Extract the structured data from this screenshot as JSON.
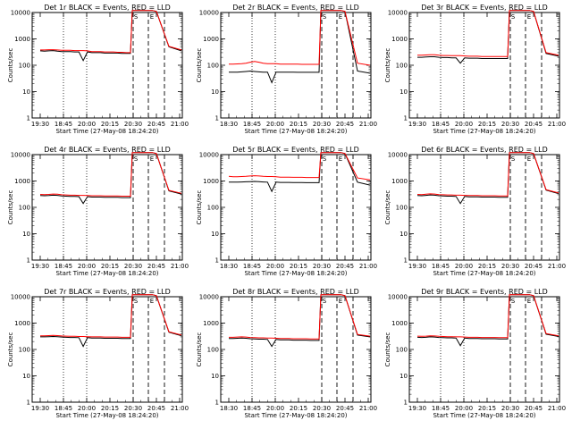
{
  "chart_data": [
    {
      "type": "line",
      "title": "Det 1r BLACK = Events, RED = LLD",
      "xlabel": "Start Time (27-May-08 18:24:20)",
      "ylabel": "Counts/sec",
      "x_tick_labels": [
        "19:30",
        "18:45",
        "20:00",
        "20:15",
        "20:30",
        "20:45",
        "21:00"
      ],
      "y_tick_labels": [
        "10000",
        "1000",
        "100",
        "10",
        "1"
      ],
      "yscale": "log",
      "ylim": [
        1,
        10000
      ],
      "markers": [
        "S",
        "E"
      ],
      "series": [
        {
          "color": "#000000",
          "values": [
            350,
            340,
            350,
            360,
            340,
            330,
            330,
            330,
            320,
            320,
            150,
            320,
            300,
            300,
            300,
            290,
            290,
            290,
            290,
            280,
            280,
            280,
            12000,
            12000,
            12000,
            12000,
            12000,
            12000,
            11000,
            500,
            350
          ]
        },
        {
          "color": "#ff0000",
          "values": [
            380,
            380,
            390,
            390,
            380,
            370,
            370,
            370,
            360,
            360,
            360,
            350,
            330,
            330,
            330,
            320,
            320,
            320,
            310,
            310,
            300,
            300,
            12000,
            12000,
            12000,
            12000,
            12000,
            12000,
            11000,
            520,
            380
          ]
        }
      ]
    },
    {
      "type": "line",
      "title": "Det 2r BLACK = Events, RED = LLD",
      "xlabel": "Start Time (27-May-08 18:24:20)",
      "ylabel": "Counts/sec",
      "x_tick_labels": [
        "18:30",
        "18:45",
        "20:00",
        "20:15",
        "20:30",
        "20:45",
        "21:00"
      ],
      "y_tick_labels": [
        "10000",
        "1000",
        "100",
        "10",
        "1"
      ],
      "yscale": "log",
      "ylim": [
        1,
        10000
      ],
      "markers": [
        "S",
        "E"
      ],
      "series": [
        {
          "color": "#000000",
          "values": [
            55,
            55,
            55,
            56,
            58,
            60,
            58,
            56,
            55,
            55,
            22,
            55,
            55,
            55,
            55,
            55,
            54,
            54,
            54,
            54,
            54,
            54,
            12000,
            12000,
            12000,
            12000,
            12000,
            12000,
            11000,
            60,
            50
          ]
        },
        {
          "color": "#ff0000",
          "values": [
            110,
            110,
            112,
            115,
            120,
            130,
            140,
            130,
            120,
            115,
            115,
            115,
            110,
            110,
            110,
            110,
            110,
            108,
            108,
            108,
            108,
            108,
            12000,
            12000,
            12000,
            12000,
            12000,
            12000,
            11000,
            120,
            100
          ]
        }
      ]
    },
    {
      "type": "line",
      "title": "Det 3r BLACK = Events, RED = LLD",
      "xlabel": "Start Time (27-May-08 18:24:20)",
      "ylabel": "Counts/sec",
      "x_tick_labels": [
        "19:30",
        "18:45",
        "20:00",
        "20:15",
        "20:30",
        "20:45",
        "21:00"
      ],
      "y_tick_labels": [
        "10000",
        "1000",
        "100",
        "10",
        "1"
      ],
      "yscale": "log",
      "ylim": [
        1,
        10000
      ],
      "markers": [
        "S",
        "E"
      ],
      "series": [
        {
          "color": "#000000",
          "values": [
            200,
            200,
            205,
            210,
            210,
            200,
            195,
            195,
            190,
            190,
            120,
            190,
            185,
            185,
            185,
            180,
            180,
            180,
            180,
            180,
            180,
            180,
            12000,
            12000,
            12000,
            12000,
            12000,
            12000,
            11000,
            280,
            220
          ]
        },
        {
          "color": "#ff0000",
          "values": [
            240,
            240,
            245,
            250,
            250,
            240,
            235,
            235,
            230,
            230,
            230,
            225,
            220,
            220,
            220,
            215,
            215,
            215,
            215,
            215,
            215,
            215,
            12000,
            12000,
            12000,
            12000,
            12000,
            12000,
            11000,
            300,
            240
          ]
        }
      ]
    },
    {
      "type": "line",
      "title": "Det 4r BLACK = Events, RED = LLD",
      "xlabel": "Start Time (27-May-08 18:24:20)",
      "ylabel": "Counts/sec",
      "x_tick_labels": [
        "19:30",
        "18:45",
        "20:00",
        "20:15",
        "20:30",
        "20:45",
        "21:00"
      ],
      "y_tick_labels": [
        "10000",
        "1000",
        "100",
        "10",
        "1"
      ],
      "yscale": "log",
      "ylim": [
        1,
        10000
      ],
      "markers": [
        "S",
        "E"
      ],
      "series": [
        {
          "color": "#000000",
          "values": [
            280,
            275,
            280,
            290,
            285,
            270,
            265,
            260,
            260,
            255,
            140,
            255,
            245,
            245,
            245,
            240,
            240,
            240,
            240,
            235,
            235,
            235,
            12000,
            12000,
            12000,
            12000,
            12000,
            12000,
            11000,
            420,
            320
          ]
        },
        {
          "color": "#ff0000",
          "values": [
            310,
            305,
            310,
            320,
            315,
            300,
            295,
            290,
            290,
            285,
            285,
            280,
            275,
            275,
            275,
            270,
            270,
            270,
            270,
            265,
            265,
            265,
            12000,
            12000,
            12000,
            12000,
            12000,
            12000,
            11000,
            440,
            340
          ]
        }
      ]
    },
    {
      "type": "line",
      "title": "Det 5r BLACK = Events, RED = LLD",
      "xlabel": "Start Time (27-May-08 18:24:20)",
      "ylabel": "Counts/sec",
      "x_tick_labels": [
        "18:30",
        "18:45",
        "20:00",
        "20:15",
        "20:30",
        "20:45",
        "21:00"
      ],
      "y_tick_labels": [
        "10000",
        "1000",
        "100",
        "10",
        "1"
      ],
      "yscale": "log",
      "ylim": [
        1,
        10000
      ],
      "markers": [
        "S",
        "E"
      ],
      "series": [
        {
          "color": "#000000",
          "values": [
            900,
            900,
            910,
            920,
            930,
            950,
            960,
            940,
            920,
            900,
            400,
            900,
            880,
            880,
            880,
            870,
            870,
            870,
            860,
            860,
            860,
            860,
            12000,
            12000,
            12000,
            12000,
            12000,
            12000,
            11000,
            900,
            700
          ]
        },
        {
          "color": "#ff0000",
          "values": [
            1500,
            1450,
            1450,
            1480,
            1500,
            1550,
            1580,
            1550,
            1500,
            1480,
            1480,
            1450,
            1400,
            1400,
            1400,
            1380,
            1380,
            1380,
            1360,
            1360,
            1360,
            1360,
            12000,
            12000,
            12000,
            12000,
            12000,
            12000,
            11000,
            1300,
            1100
          ]
        }
      ]
    },
    {
      "type": "line",
      "title": "Det 6r BLACK = Events, RED = LLD",
      "xlabel": "Start Time (27-May-08 18:24:20)",
      "ylabel": "Counts/sec",
      "x_tick_labels": [
        "19:30",
        "18:45",
        "20:00",
        "20:15",
        "20:30",
        "20:45",
        "21:00"
      ],
      "y_tick_labels": [
        "10000",
        "1000",
        "100",
        "10",
        "1"
      ],
      "yscale": "log",
      "ylim": [
        1,
        10000
      ],
      "markers": [
        "S",
        "E"
      ],
      "series": [
        {
          "color": "#000000",
          "values": [
            280,
            275,
            285,
            295,
            290,
            275,
            270,
            265,
            265,
            260,
            140,
            260,
            250,
            250,
            250,
            245,
            245,
            245,
            245,
            240,
            240,
            240,
            12000,
            12000,
            12000,
            12000,
            12000,
            12000,
            11000,
            450,
            330
          ]
        },
        {
          "color": "#ff0000",
          "values": [
            310,
            305,
            315,
            325,
            320,
            305,
            300,
            295,
            295,
            290,
            290,
            285,
            280,
            280,
            280,
            275,
            275,
            275,
            275,
            270,
            270,
            270,
            12000,
            12000,
            12000,
            12000,
            12000,
            12000,
            11000,
            470,
            350
          ]
        }
      ]
    },
    {
      "type": "line",
      "title": "Det 7r BLACK = Events, RED = LLD",
      "xlabel": "Start Time (27-May-08 18:24:20)",
      "ylabel": "Counts/sec",
      "x_tick_labels": [
        "19:30",
        "18:45",
        "20:00",
        "20:15",
        "20:30",
        "20:45",
        "21:00"
      ],
      "y_tick_labels": [
        "10000",
        "1000",
        "100",
        "10",
        "1"
      ],
      "yscale": "log",
      "ylim": [
        1,
        10000
      ],
      "markers": [
        "S",
        "E"
      ],
      "series": [
        {
          "color": "#000000",
          "values": [
            300,
            300,
            305,
            310,
            305,
            295,
            290,
            285,
            285,
            280,
            130,
            280,
            270,
            270,
            270,
            265,
            265,
            265,
            265,
            260,
            260,
            260,
            12000,
            12000,
            12000,
            12000,
            12000,
            12000,
            11000,
            450,
            330
          ]
        },
        {
          "color": "#ff0000",
          "values": [
            330,
            330,
            335,
            340,
            335,
            325,
            320,
            315,
            315,
            310,
            310,
            305,
            300,
            300,
            300,
            295,
            295,
            295,
            295,
            290,
            290,
            290,
            12000,
            12000,
            12000,
            12000,
            12000,
            12000,
            11000,
            470,
            350
          ]
        }
      ]
    },
    {
      "type": "line",
      "title": "Det 8r BLACK = Events, RED = LLD",
      "xlabel": "Start Time (27-May-08 18:24:20)",
      "ylabel": "Counts/sec",
      "x_tick_labels": [
        "18:30",
        "18:45",
        "20:00",
        "20:15",
        "20:30",
        "20:45",
        "21:00"
      ],
      "y_tick_labels": [
        "10000",
        "1000",
        "100",
        "10",
        "1"
      ],
      "yscale": "log",
      "ylim": [
        1,
        10000
      ],
      "markers": [
        "S",
        "E"
      ],
      "series": [
        {
          "color": "#000000",
          "values": [
            260,
            260,
            265,
            270,
            265,
            255,
            250,
            245,
            245,
            240,
            130,
            240,
            230,
            230,
            230,
            225,
            225,
            225,
            225,
            220,
            220,
            220,
            12000,
            12000,
            12000,
            12000,
            12000,
            12000,
            11000,
            350,
            300
          ]
        },
        {
          "color": "#ff0000",
          "values": [
            290,
            290,
            295,
            300,
            295,
            285,
            280,
            275,
            275,
            270,
            270,
            265,
            260,
            260,
            260,
            255,
            255,
            255,
            255,
            250,
            250,
            250,
            12000,
            12000,
            12000,
            12000,
            12000,
            12000,
            11000,
            370,
            320
          ]
        }
      ]
    },
    {
      "type": "line",
      "title": "Det 9r BLACK = Events, RED = LLD",
      "xlabel": "Start Time (27-May-08 18:24:20)",
      "ylabel": "Counts/sec",
      "x_tick_labels": [
        "19:30",
        "18:45",
        "20:00",
        "20:15",
        "20:30",
        "20:45",
        "21:00"
      ],
      "y_tick_labels": [
        "10000",
        "1000",
        "100",
        "10",
        "1"
      ],
      "yscale": "log",
      "ylim": [
        1,
        10000
      ],
      "markers": [
        "S",
        "E"
      ],
      "series": [
        {
          "color": "#000000",
          "values": [
            290,
            285,
            290,
            300,
            295,
            285,
            280,
            275,
            275,
            270,
            140,
            270,
            260,
            260,
            260,
            255,
            255,
            255,
            255,
            250,
            250,
            250,
            12000,
            12000,
            12000,
            12000,
            12000,
            12000,
            11000,
            380,
            310
          ]
        },
        {
          "color": "#ff0000",
          "values": [
            320,
            315,
            320,
            330,
            325,
            315,
            310,
            305,
            305,
            300,
            300,
            295,
            290,
            290,
            290,
            285,
            285,
            285,
            285,
            280,
            280,
            280,
            12000,
            12000,
            12000,
            12000,
            12000,
            12000,
            11000,
            400,
            330
          ]
        }
      ]
    }
  ]
}
